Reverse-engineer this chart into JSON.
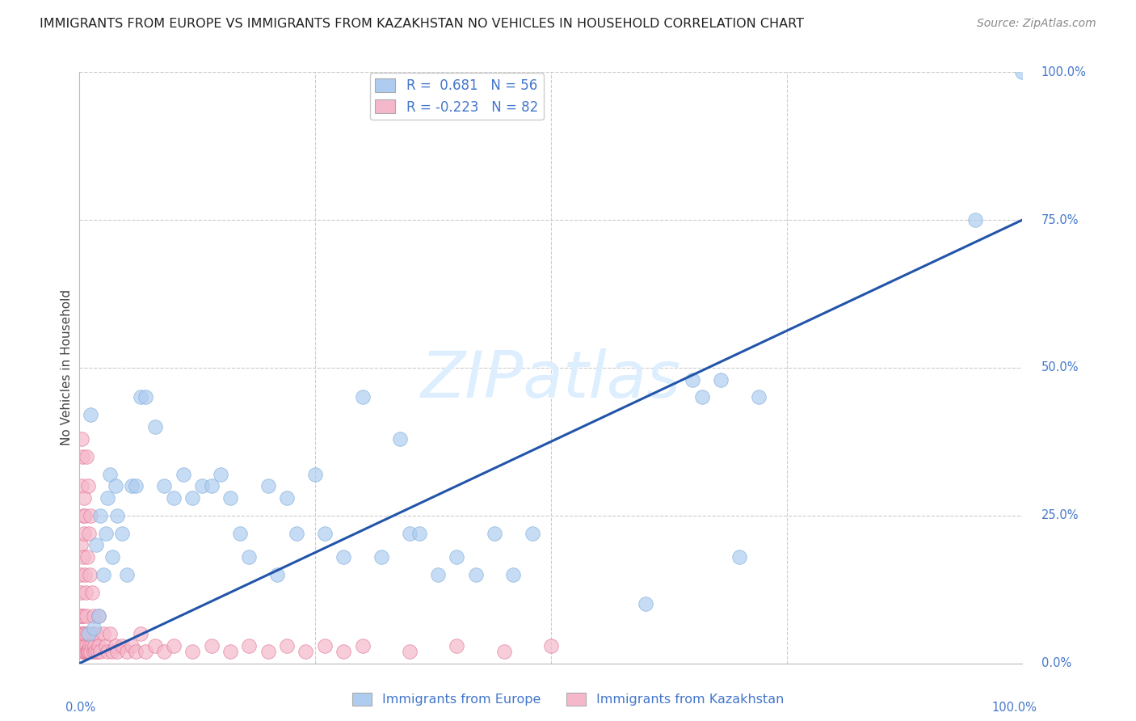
{
  "title": "IMMIGRANTS FROM EUROPE VS IMMIGRANTS FROM KAZAKHSTAN NO VEHICLES IN HOUSEHOLD CORRELATION CHART",
  "source": "Source: ZipAtlas.com",
  "ylabel": "No Vehicles in Household",
  "legend_europe": "Immigrants from Europe",
  "legend_kazakhstan": "Immigrants from Kazakhstan",
  "europe_R": "0.681",
  "europe_N": "56",
  "kazakhstan_R": "-0.223",
  "kazakhstan_N": "82",
  "europe_color": "#aeccf0",
  "europe_edge_color": "#7aaad8",
  "kazakhstan_color": "#f5b8cb",
  "kazakhstan_edge_color": "#e07090",
  "trendline_color": "#2255aa",
  "watermark_text": "ZIPatlas",
  "watermark_color": "#ddeeff",
  "background_color": "#ffffff",
  "grid_color": "#cccccc",
  "axis_label_color": "#4477cc",
  "title_color": "#222222",
  "source_color": "#888888",
  "xlim": [
    0,
    100
  ],
  "ylim": [
    0,
    100
  ],
  "trendline_x": [
    0,
    100
  ],
  "trendline_y": [
    0,
    75
  ],
  "europe_scatter_x": [
    1.0,
    1.2,
    1.5,
    1.8,
    2.0,
    2.2,
    2.5,
    2.8,
    3.0,
    3.2,
    3.5,
    3.8,
    4.0,
    4.5,
    5.0,
    5.5,
    6.0,
    6.5,
    7.0,
    8.0,
    9.0,
    10.0,
    11.0,
    12.0,
    13.0,
    14.0,
    15.0,
    16.0,
    17.0,
    18.0,
    20.0,
    21.0,
    22.0,
    23.0,
    25.0,
    26.0,
    28.0,
    30.0,
    32.0,
    34.0,
    35.0,
    36.0,
    38.0,
    40.0,
    42.0,
    44.0,
    46.0,
    48.0,
    60.0,
    65.0,
    66.0,
    68.0,
    70.0,
    72.0,
    95.0,
    100.0
  ],
  "europe_scatter_y": [
    5.0,
    42.0,
    6.0,
    20.0,
    8.0,
    25.0,
    15.0,
    22.0,
    28.0,
    32.0,
    18.0,
    30.0,
    25.0,
    22.0,
    15.0,
    30.0,
    30.0,
    45.0,
    45.0,
    40.0,
    30.0,
    28.0,
    32.0,
    28.0,
    30.0,
    30.0,
    32.0,
    28.0,
    22.0,
    18.0,
    30.0,
    15.0,
    28.0,
    22.0,
    32.0,
    22.0,
    18.0,
    45.0,
    18.0,
    38.0,
    22.0,
    22.0,
    15.0,
    18.0,
    15.0,
    22.0,
    15.0,
    22.0,
    10.0,
    48.0,
    45.0,
    48.0,
    18.0,
    45.0,
    75.0,
    100.0
  ],
  "kazakhstan_scatter_x": [
    0.05,
    0.1,
    0.1,
    0.15,
    0.15,
    0.2,
    0.2,
    0.2,
    0.25,
    0.25,
    0.3,
    0.3,
    0.35,
    0.35,
    0.4,
    0.4,
    0.45,
    0.45,
    0.5,
    0.5,
    0.55,
    0.55,
    0.6,
    0.6,
    0.65,
    0.65,
    0.7,
    0.7,
    0.75,
    0.8,
    0.8,
    0.85,
    0.9,
    0.9,
    1.0,
    1.0,
    1.1,
    1.1,
    1.2,
    1.2,
    1.3,
    1.3,
    1.4,
    1.5,
    1.5,
    1.6,
    1.7,
    1.8,
    1.9,
    2.0,
    2.0,
    2.2,
    2.5,
    2.8,
    3.0,
    3.2,
    3.5,
    3.8,
    4.0,
    4.5,
    5.0,
    5.5,
    6.0,
    6.5,
    7.0,
    8.0,
    9.0,
    10.0,
    12.0,
    14.0,
    16.0,
    18.0,
    20.0,
    22.0,
    24.0,
    26.0,
    28.0,
    30.0,
    35.0,
    40.0,
    45.0,
    50.0
  ],
  "kazakhstan_scatter_y": [
    5.0,
    8.0,
    12.0,
    15.0,
    20.0,
    3.0,
    8.0,
    38.0,
    5.0,
    30.0,
    2.0,
    35.0,
    8.0,
    25.0,
    2.0,
    18.0,
    5.0,
    28.0,
    3.0,
    22.0,
    2.0,
    15.0,
    5.0,
    25.0,
    2.0,
    12.0,
    3.0,
    35.0,
    8.0,
    2.0,
    18.0,
    5.0,
    2.0,
    30.0,
    2.0,
    22.0,
    3.0,
    15.0,
    2.0,
    25.0,
    3.0,
    12.0,
    5.0,
    2.0,
    8.0,
    3.0,
    2.0,
    5.0,
    2.0,
    3.0,
    8.0,
    2.0,
    5.0,
    3.0,
    2.0,
    5.0,
    2.0,
    3.0,
    2.0,
    3.0,
    2.0,
    3.0,
    2.0,
    5.0,
    2.0,
    3.0,
    2.0,
    3.0,
    2.0,
    3.0,
    2.0,
    3.0,
    2.0,
    3.0,
    2.0,
    3.0,
    2.0,
    3.0,
    2.0,
    3.0,
    2.0,
    3.0
  ]
}
